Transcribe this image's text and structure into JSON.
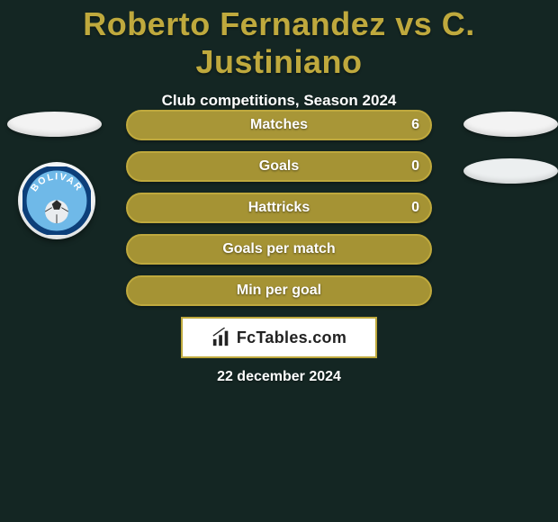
{
  "title": "Roberto Fernandez vs C. Justiniano",
  "subtitle": "Club competitions, Season 2024",
  "date_line": "22 december 2024",
  "brand_logo_text": "FcTables.com",
  "colors": {
    "accent": "#bfa93d",
    "background": "#142623",
    "text_light": "#ffffff",
    "box_bg": "#ffffff",
    "badge_outer": "#f5f7f8",
    "badge_sky": "#6fb9e8",
    "badge_ring": "#0d3f7a",
    "badge_ball": "#e9ecef"
  },
  "club_badge": {
    "name": "BOLIVAR"
  },
  "bars": [
    {
      "label": "Matches",
      "value": "6",
      "bg": "#a89637",
      "border": "#bfa93d",
      "show_value": true
    },
    {
      "label": "Goals",
      "value": "0",
      "bg": "#a59334",
      "border": "#bfa93d",
      "show_value": true
    },
    {
      "label": "Hattricks",
      "value": "0",
      "bg": "#a59334",
      "border": "#bfa93d",
      "show_value": true
    },
    {
      "label": "Goals per match",
      "value": "",
      "bg": "#a59334",
      "border": "#bfa93d",
      "show_value": false
    },
    {
      "label": "Min per goal",
      "value": "",
      "bg": "#a59334",
      "border": "#bfa93d",
      "show_value": false
    }
  ]
}
